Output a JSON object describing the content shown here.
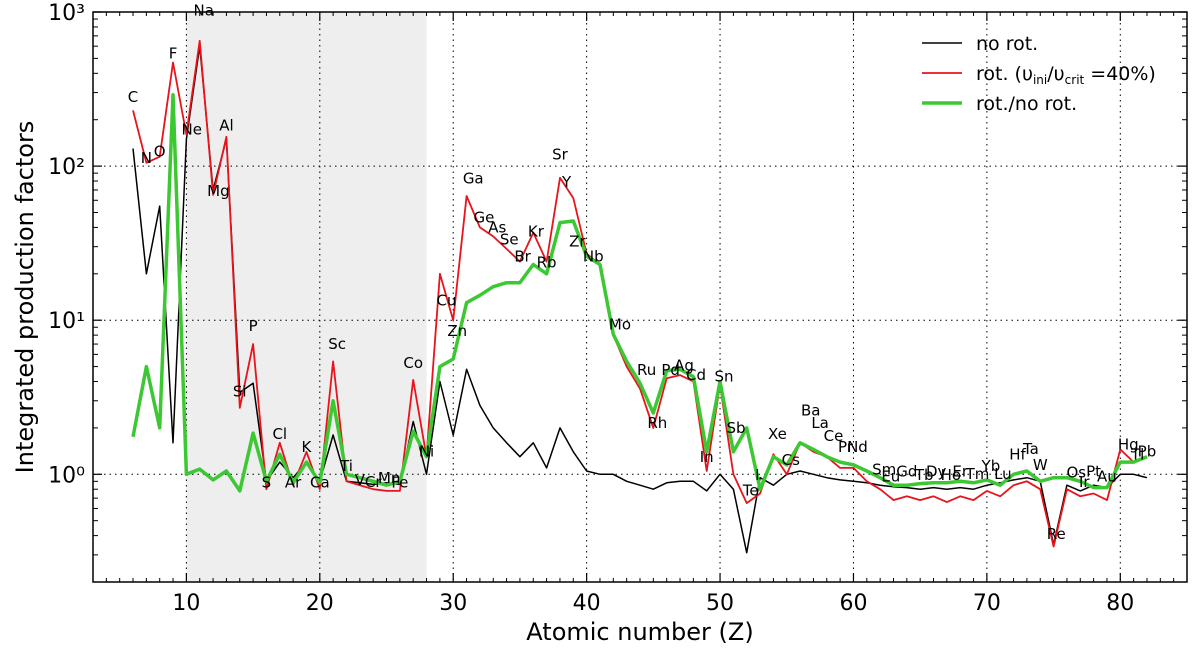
{
  "chart_data": {
    "type": "line",
    "x_axis": {
      "label": "Atomic number (Z)",
      "lim": [
        3,
        85
      ],
      "ticks": [
        10,
        20,
        30,
        40,
        50,
        60,
        70,
        80
      ],
      "tick_labels": [
        "10",
        "20",
        "30",
        "40",
        "50",
        "60",
        "70",
        "80"
      ]
    },
    "y_axis": {
      "label": "Integrated production factors",
      "scale": "log",
      "lim": [
        0.2,
        1000
      ],
      "ticks": [
        1,
        10,
        100,
        1000
      ],
      "tick_labels": [
        "10⁰",
        "10¹",
        "10²",
        "10³"
      ]
    },
    "grid": "dotted",
    "shaded_region": {
      "x_from": 10,
      "x_to": 28,
      "color": "#eeeeee"
    },
    "legend": {
      "position": "top-right",
      "entries": [
        {
          "series": "no rot.",
          "text": "no rot."
        },
        {
          "series": "rot.",
          "text": "rot. (υ",
          "sub1": "ini",
          "mid": "/υ",
          "sub2": "crit",
          "tail": " =40%)"
        },
        {
          "series": "rot./no rot.",
          "text": "rot./no rot."
        }
      ]
    },
    "series": [
      {
        "name": "no rot.",
        "color": "#000000",
        "width": 1.5,
        "x": [
          6,
          7,
          8,
          9,
          10,
          11,
          12,
          13,
          14,
          15,
          16,
          17,
          18,
          19,
          20,
          21,
          22,
          23,
          24,
          25,
          26,
          27,
          28,
          29,
          30,
          31,
          32,
          33,
          34,
          35,
          36,
          37,
          38,
          39,
          40,
          41,
          42,
          43,
          44,
          45,
          46,
          47,
          48,
          49,
          50,
          51,
          52,
          53,
          54,
          55,
          56,
          57,
          58,
          59,
          60,
          61,
          62,
          63,
          64,
          65,
          66,
          67,
          68,
          69,
          70,
          71,
          72,
          73,
          74,
          75,
          76,
          77,
          78,
          79,
          80,
          81,
          82
        ],
        "y": [
          130,
          20,
          55,
          1.6,
          150,
          600,
          70,
          150,
          3.4,
          3.9,
          0.9,
          1.2,
          0.95,
          1.2,
          0.9,
          1.8,
          0.9,
          0.88,
          0.86,
          0.88,
          0.86,
          2.2,
          1.0,
          4.0,
          1.8,
          4.8,
          2.8,
          2.0,
          1.6,
          1.3,
          1.6,
          1.1,
          2.0,
          1.4,
          1.05,
          1.0,
          1.0,
          0.9,
          0.85,
          0.8,
          0.88,
          0.9,
          0.9,
          0.78,
          1.0,
          0.8,
          0.31,
          0.95,
          0.85,
          1.0,
          1.05,
          1.0,
          0.95,
          0.92,
          0.9,
          0.88,
          0.85,
          0.83,
          0.82,
          0.8,
          0.82,
          0.8,
          0.82,
          0.8,
          0.85,
          0.88,
          0.92,
          0.95,
          0.9,
          0.35,
          0.85,
          0.78,
          0.85,
          0.82,
          1.0,
          1.0,
          0.95
        ]
      },
      {
        "name": "rot.",
        "color": "#e8141c",
        "width": 1.8,
        "x": [
          6,
          7,
          8,
          9,
          10,
          11,
          12,
          13,
          14,
          15,
          16,
          17,
          18,
          19,
          20,
          21,
          22,
          23,
          24,
          25,
          26,
          27,
          28,
          29,
          30,
          31,
          32,
          33,
          34,
          35,
          36,
          37,
          38,
          39,
          40,
          41,
          42,
          43,
          44,
          45,
          46,
          47,
          48,
          49,
          50,
          51,
          52,
          53,
          54,
          55,
          56,
          57,
          58,
          59,
          60,
          61,
          62,
          63,
          64,
          65,
          66,
          67,
          68,
          69,
          70,
          71,
          72,
          73,
          74,
          75,
          76,
          77,
          78,
          79,
          80,
          81,
          82
        ],
        "y": [
          230,
          105,
          115,
          470,
          160,
          650,
          65,
          155,
          2.7,
          7.0,
          0.8,
          1.6,
          0.85,
          1.4,
          0.8,
          5.4,
          0.9,
          0.85,
          0.8,
          0.78,
          0.78,
          4.1,
          1.3,
          20,
          10,
          64,
          40,
          35,
          29,
          24,
          37,
          24,
          84,
          62,
          27,
          23,
          8,
          5,
          3.6,
          2.0,
          4.2,
          4.4,
          4.0,
          1.05,
          3.8,
          1.0,
          0.65,
          0.75,
          1.35,
          1.0,
          1.6,
          1.4,
          1.3,
          1.1,
          1.1,
          0.9,
          0.8,
          0.68,
          0.72,
          0.68,
          0.72,
          0.66,
          0.72,
          0.68,
          0.78,
          0.72,
          0.85,
          0.9,
          0.8,
          0.34,
          0.8,
          0.72,
          0.75,
          0.68,
          1.45,
          1.2,
          1.3
        ]
      },
      {
        "name": "rot./no rot.",
        "color": "#3cc832",
        "width": 3.5,
        "x": [
          6,
          7,
          8,
          9,
          10,
          11,
          12,
          13,
          14,
          15,
          16,
          17,
          18,
          19,
          20,
          21,
          22,
          23,
          24,
          25,
          26,
          27,
          28,
          29,
          30,
          31,
          32,
          33,
          34,
          35,
          36,
          37,
          38,
          39,
          40,
          41,
          42,
          43,
          44,
          45,
          46,
          47,
          48,
          49,
          50,
          51,
          52,
          53,
          54,
          55,
          56,
          57,
          58,
          59,
          60,
          61,
          62,
          63,
          64,
          65,
          66,
          67,
          68,
          69,
          70,
          71,
          72,
          73,
          74,
          75,
          76,
          77,
          78,
          79,
          80,
          81,
          82
        ],
        "y": [
          1.75,
          5.0,
          2.0,
          290,
          1.0,
          1.08,
          0.92,
          1.05,
          0.78,
          1.85,
          0.9,
          1.35,
          0.88,
          1.2,
          0.88,
          3.0,
          1.0,
          0.95,
          0.9,
          0.85,
          0.9,
          1.9,
          1.3,
          5.0,
          5.6,
          13,
          14.5,
          16.5,
          17.5,
          17.5,
          23,
          20,
          43,
          44,
          26,
          23,
          8.1,
          5.4,
          3.9,
          2.5,
          4.7,
          4.8,
          4.3,
          1.4,
          4.0,
          1.4,
          2.0,
          0.8,
          1.3,
          1.15,
          1.6,
          1.45,
          1.3,
          1.2,
          1.15,
          1.05,
          0.95,
          0.85,
          0.85,
          0.87,
          0.88,
          0.88,
          0.9,
          0.88,
          0.92,
          0.85,
          1.0,
          1.05,
          0.9,
          0.95,
          0.95,
          0.9,
          0.82,
          0.82,
          1.2,
          1.2,
          1.3
        ]
      }
    ],
    "element_labels": [
      {
        "t": "C",
        "x": 6,
        "y": 260
      },
      {
        "t": "N",
        "x": 7,
        "y": 105
      },
      {
        "t": "O",
        "x": 8,
        "y": 115
      },
      {
        "t": "F",
        "x": 9,
        "y": 500
      },
      {
        "t": "Ne",
        "x": 10.4,
        "y": 160
      },
      {
        "t": "Na",
        "x": 11.3,
        "y": 950
      },
      {
        "t": "Mg",
        "x": 12.4,
        "y": 64
      },
      {
        "t": "Al",
        "x": 13,
        "y": 170
      },
      {
        "t": "Si",
        "x": 14,
        "y": 3.2
      },
      {
        "t": "P",
        "x": 15,
        "y": 8.5
      },
      {
        "t": "S",
        "x": 16,
        "y": 0.82
      },
      {
        "t": "Cl",
        "x": 17,
        "y": 1.7
      },
      {
        "t": "Ar",
        "x": 18,
        "y": 0.82
      },
      {
        "t": "K",
        "x": 19,
        "y": 1.4
      },
      {
        "t": "Ca",
        "x": 20,
        "y": 0.82
      },
      {
        "t": "Sc",
        "x": 21.3,
        "y": 6.5
      },
      {
        "t": "Ti",
        "x": 22,
        "y": 1.05
      },
      {
        "t": "V",
        "x": 23,
        "y": 0.85
      },
      {
        "t": "Cr",
        "x": 24,
        "y": 0.83
      },
      {
        "t": "Mn",
        "x": 25.2,
        "y": 0.88
      },
      {
        "t": "Fe",
        "x": 26,
        "y": 0.82
      },
      {
        "t": "Co",
        "x": 27,
        "y": 4.9
      },
      {
        "t": "Ni",
        "x": 28,
        "y": 1.3
      },
      {
        "t": "Cu",
        "x": 29.5,
        "y": 12.5
      },
      {
        "t": "Zn",
        "x": 30.3,
        "y": 7.9
      },
      {
        "t": "Ga",
        "x": 31.5,
        "y": 77
      },
      {
        "t": "Ge",
        "x": 32.3,
        "y": 43
      },
      {
        "t": "As",
        "x": 33.3,
        "y": 37
      },
      {
        "t": "Se",
        "x": 34.2,
        "y": 31
      },
      {
        "t": "Br",
        "x": 35.2,
        "y": 24
      },
      {
        "t": "Kr",
        "x": 36.2,
        "y": 35
      },
      {
        "t": "Rb",
        "x": 37,
        "y": 22
      },
      {
        "t": "Sr",
        "x": 38,
        "y": 110
      },
      {
        "t": "Y",
        "x": 38.5,
        "y": 73
      },
      {
        "t": "Zr",
        "x": 39.3,
        "y": 30
      },
      {
        "t": "Nb",
        "x": 40.5,
        "y": 24
      },
      {
        "t": "Mo",
        "x": 42.5,
        "y": 8.7
      },
      {
        "t": "Ru",
        "x": 44.5,
        "y": 4.4
      },
      {
        "t": "Rh",
        "x": 45.3,
        "y": 2.0
      },
      {
        "t": "Pd",
        "x": 46.3,
        "y": 4.4
      },
      {
        "t": "Ag",
        "x": 47.3,
        "y": 4.7
      },
      {
        "t": "Cd",
        "x": 48.2,
        "y": 4.1
      },
      {
        "t": "In",
        "x": 49,
        "y": 1.2
      },
      {
        "t": "Sn",
        "x": 50.3,
        "y": 4.0
      },
      {
        "t": "Sb",
        "x": 51.2,
        "y": 1.85
      },
      {
        "t": "Te",
        "x": 52.3,
        "y": 0.73
      },
      {
        "t": "I",
        "x": 52.8,
        "y": 0.92
      },
      {
        "t": "Xe",
        "x": 54.3,
        "y": 1.7
      },
      {
        "t": "Cs",
        "x": 55.3,
        "y": 1.15
      },
      {
        "t": "Ba",
        "x": 56.8,
        "y": 2.4
      },
      {
        "t": "La",
        "x": 57.5,
        "y": 2.0
      },
      {
        "t": "Ce",
        "x": 58.5,
        "y": 1.65
      },
      {
        "t": "Pr",
        "x": 59.4,
        "y": 1.4
      },
      {
        "t": "Nd",
        "x": 60.3,
        "y": 1.4
      },
      {
        "t": "Sm",
        "x": 62.3,
        "y": 1.0
      },
      {
        "t": "Eu",
        "x": 62.8,
        "y": 0.9
      },
      {
        "t": "Gd",
        "x": 64,
        "y": 0.97
      },
      {
        "t": "Tb",
        "x": 65.3,
        "y": 0.92
      },
      {
        "t": "Dy",
        "x": 66.2,
        "y": 0.97
      },
      {
        "t": "Ho",
        "x": 67.3,
        "y": 0.92
      },
      {
        "t": "Er",
        "x": 68,
        "y": 0.97
      },
      {
        "t": "Tm",
        "x": 69.3,
        "y": 0.93
      },
      {
        "t": "Yb",
        "x": 70.3,
        "y": 1.05
      },
      {
        "t": "Lu",
        "x": 71.2,
        "y": 0.93
      },
      {
        "t": "Hf",
        "x": 72.3,
        "y": 1.25
      },
      {
        "t": "Ta",
        "x": 73.3,
        "y": 1.35
      },
      {
        "t": "W",
        "x": 74,
        "y": 1.07
      },
      {
        "t": "Re",
        "x": 75.2,
        "y": 0.38
      },
      {
        "t": "Os",
        "x": 76.7,
        "y": 0.95
      },
      {
        "t": "Ir",
        "x": 77.3,
        "y": 0.83
      },
      {
        "t": "Pt",
        "x": 78,
        "y": 0.97
      },
      {
        "t": "Au",
        "x": 79,
        "y": 0.9
      },
      {
        "t": "Hg",
        "x": 80.6,
        "y": 1.45
      },
      {
        "t": "Tl",
        "x": 81.3,
        "y": 1.25
      },
      {
        "t": "Pb",
        "x": 82,
        "y": 1.3
      }
    ]
  }
}
